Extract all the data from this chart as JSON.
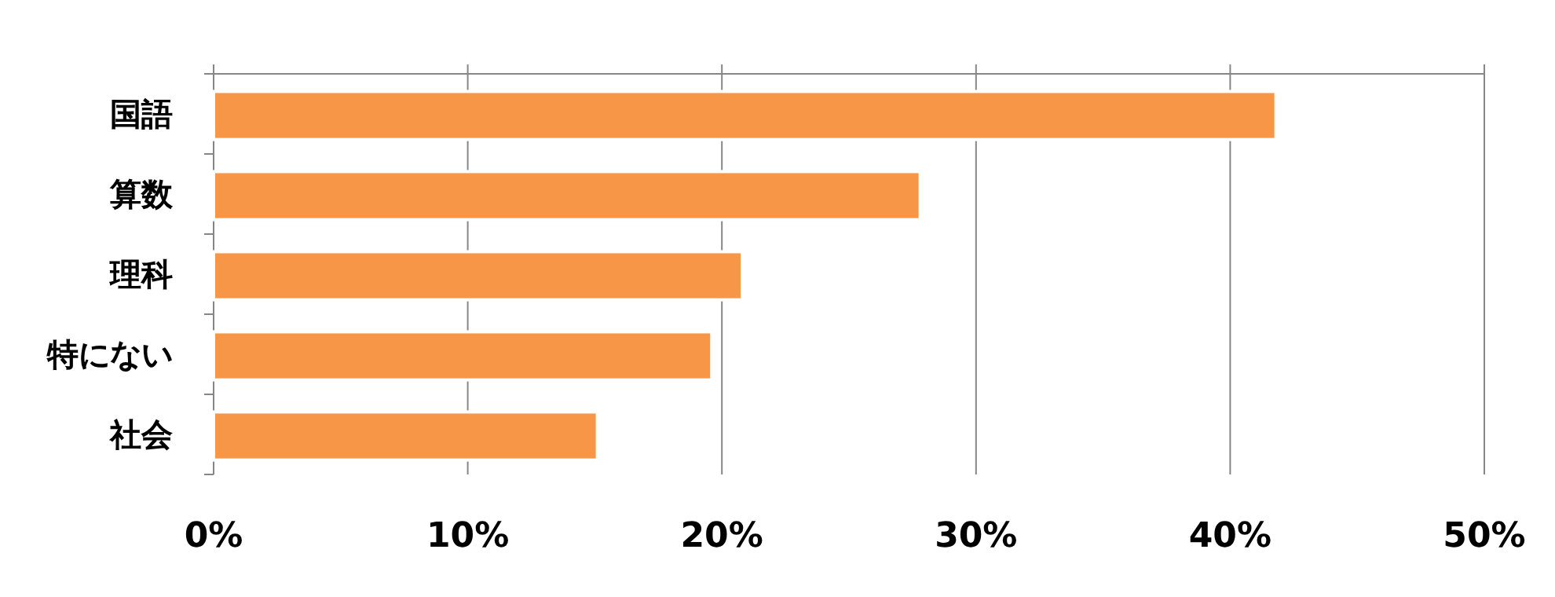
{
  "chart_data": {
    "type": "bar",
    "orientation": "horizontal",
    "categories": [
      "国語",
      "算数",
      "理科",
      "特にない",
      "社会"
    ],
    "values": [
      41.8,
      27.8,
      20.8,
      19.6,
      15.1
    ],
    "color": "#f79646",
    "xlim": [
      0,
      50
    ],
    "xticks": [
      {
        "value": 0,
        "label": "0%"
      },
      {
        "value": 10,
        "label": "10%"
      },
      {
        "value": 20,
        "label": "20%"
      },
      {
        "value": 30,
        "label": "30%"
      },
      {
        "value": 40,
        "label": "40%"
      },
      {
        "value": 50,
        "label": "50%"
      }
    ],
    "grid": "x"
  }
}
